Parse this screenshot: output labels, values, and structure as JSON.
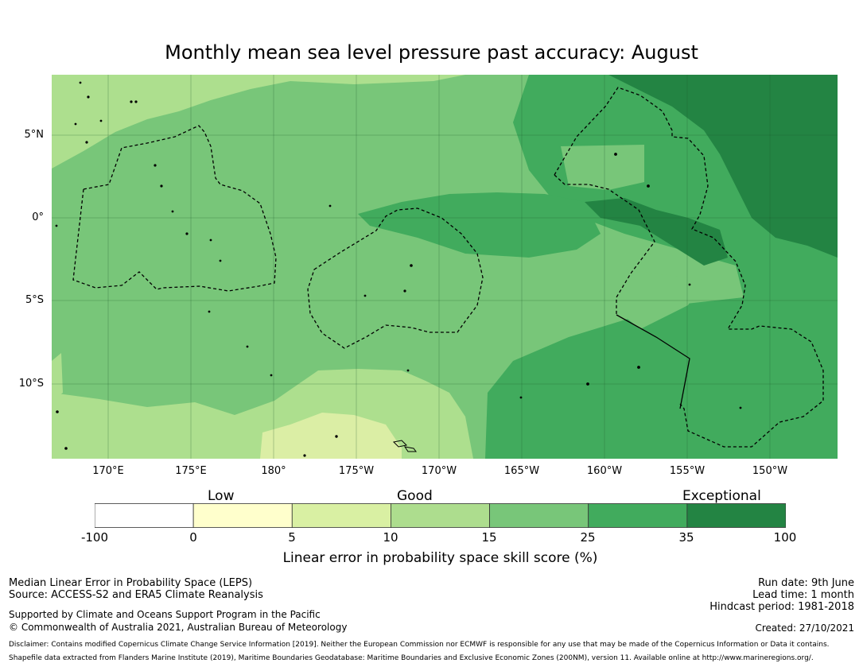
{
  "title": "Monthly mean sea level pressure past accuracy: August",
  "map": {
    "lat_labels": [
      "5°N",
      "0°",
      "5°S",
      "10°S"
    ],
    "lon_labels": [
      "170°E",
      "175°E",
      "180°",
      "175°W",
      "170°W",
      "165°W",
      "160°W",
      "155°W",
      "150°W"
    ],
    "colors": {
      "very_light": "#dbeea5",
      "light": "#addf8e",
      "mid": "#78c679",
      "dark": "#41ab5d",
      "darker": "#238443"
    }
  },
  "legend": {
    "categories": [
      "Low",
      "Good",
      "Exceptional"
    ],
    "ticks": [
      "-100",
      "0",
      "5",
      "10",
      "15",
      "25",
      "35",
      "100"
    ],
    "colors": [
      "#ffffff",
      "#ffffcc",
      "#d9f0a3",
      "#addd8e",
      "#78c679",
      "#41ab5d",
      "#238443"
    ],
    "label": "Linear error in probability space skill score (%)"
  },
  "footer": {
    "left1": "Median Linear Error in Probability Space (LEPS)",
    "left2": "Source: ACCESS-S2 and ERA5 Climate Reanalysis",
    "left3": "Supported by Climate and Oceans Support Program in the Pacific",
    "left4": "© Commonwealth of Australia 2021, Australian Bureau of Meteorology",
    "right1": "Run date: 9th June",
    "right2": "Lead time: 1 month",
    "right3": "Hindcast period: 1981-2018",
    "created": "Created: 27/10/2021",
    "disclaimer": "Disclaimer: Contains modified Copernicus Climate Change Service Information [2019]. Neither the European Commission nor ECMWF is responsible for any use that may be made of the Copernicus Information or Data it contains.",
    "shapefile": "Shapefile data extracted from Flanders Marine Institute (2019), Maritime Boundaries Geodatabase: Maritime Boundaries and Exclusive Economic Zones (200NM), version 11. Available online at http://www.marineregions.org/."
  }
}
